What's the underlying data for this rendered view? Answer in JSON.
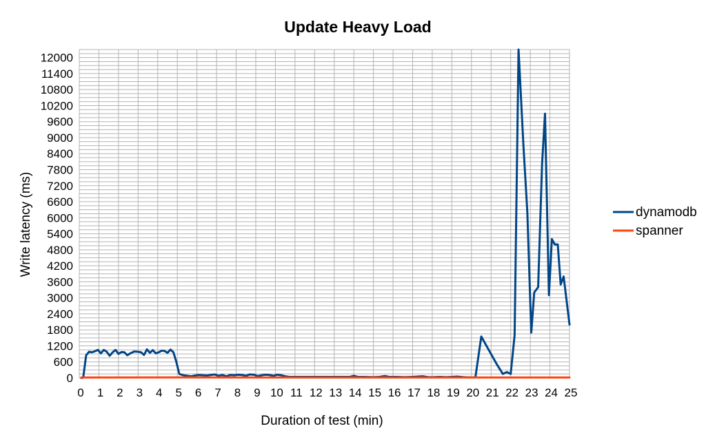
{
  "chart_data": {
    "type": "line",
    "title": "Update Heavy Load",
    "xlabel": "Duration of test (min)",
    "ylabel": "Write latency (ms)",
    "xlim": [
      0,
      25
    ],
    "ylim": [
      0,
      12300
    ],
    "x_ticks": [
      "0",
      "1",
      "2",
      "3",
      "4",
      "5",
      "6",
      "7",
      "8",
      "9",
      "10",
      "11",
      "12",
      "13",
      "14",
      "15",
      "16",
      "17",
      "18",
      "19",
      "20",
      "21",
      "22",
      "23",
      "24",
      "25"
    ],
    "y_ticks": [
      "0",
      "600",
      "1200",
      "1800",
      "2400",
      "3000",
      "3600",
      "4200",
      "4800",
      "5400",
      "6000",
      "6600",
      "7200",
      "7800",
      "8400",
      "9000",
      "9600",
      "10200",
      "10800",
      "11400",
      "12000"
    ],
    "minor_grid_step": 150,
    "grid": true,
    "legend_position": "right",
    "series": [
      {
        "name": "dynamodb",
        "color": "#004586",
        "points": [
          [
            0.1,
            0
          ],
          [
            0.2,
            10
          ],
          [
            0.35,
            850
          ],
          [
            0.5,
            980
          ],
          [
            0.65,
            960
          ],
          [
            0.8,
            1000
          ],
          [
            0.95,
            1050
          ],
          [
            1.1,
            920
          ],
          [
            1.25,
            1050
          ],
          [
            1.4,
            980
          ],
          [
            1.55,
            830
          ],
          [
            1.7,
            960
          ],
          [
            1.85,
            1050
          ],
          [
            2.0,
            900
          ],
          [
            2.15,
            970
          ],
          [
            2.3,
            960
          ],
          [
            2.45,
            850
          ],
          [
            2.6,
            920
          ],
          [
            2.8,
            990
          ],
          [
            3.0,
            980
          ],
          [
            3.15,
            960
          ],
          [
            3.3,
            860
          ],
          [
            3.45,
            1070
          ],
          [
            3.6,
            940
          ],
          [
            3.75,
            1040
          ],
          [
            3.9,
            920
          ],
          [
            4.05,
            960
          ],
          [
            4.2,
            1020
          ],
          [
            4.35,
            1010
          ],
          [
            4.5,
            940
          ],
          [
            4.65,
            1060
          ],
          [
            4.8,
            960
          ],
          [
            4.95,
            600
          ],
          [
            5.1,
            150
          ],
          [
            5.3,
            100
          ],
          [
            5.5,
            80
          ],
          [
            5.7,
            60
          ],
          [
            5.9,
            90
          ],
          [
            6.1,
            110
          ],
          [
            6.3,
            100
          ],
          [
            6.5,
            90
          ],
          [
            6.7,
            110
          ],
          [
            6.9,
            130
          ],
          [
            7.1,
            80
          ],
          [
            7.3,
            110
          ],
          [
            7.5,
            60
          ],
          [
            7.7,
            110
          ],
          [
            7.9,
            100
          ],
          [
            8.1,
            120
          ],
          [
            8.3,
            110
          ],
          [
            8.5,
            80
          ],
          [
            8.7,
            130
          ],
          [
            8.9,
            120
          ],
          [
            9.1,
            70
          ],
          [
            9.3,
            100
          ],
          [
            9.5,
            120
          ],
          [
            9.7,
            110
          ],
          [
            9.9,
            80
          ],
          [
            10.1,
            120
          ],
          [
            10.3,
            100
          ],
          [
            10.5,
            60
          ],
          [
            10.7,
            40
          ],
          [
            11.0,
            40
          ],
          [
            11.5,
            40
          ],
          [
            12.0,
            40
          ],
          [
            12.5,
            40
          ],
          [
            13.0,
            40
          ],
          [
            13.5,
            40
          ],
          [
            13.8,
            40
          ],
          [
            14.0,
            80
          ],
          [
            14.2,
            40
          ],
          [
            14.5,
            40
          ],
          [
            15.0,
            30
          ],
          [
            15.3,
            40
          ],
          [
            15.6,
            70
          ],
          [
            15.8,
            40
          ],
          [
            16.2,
            40
          ],
          [
            16.6,
            30
          ],
          [
            17.0,
            40
          ],
          [
            17.5,
            60
          ],
          [
            17.8,
            30
          ],
          [
            18.1,
            30
          ],
          [
            18.4,
            40
          ],
          [
            18.7,
            30
          ],
          [
            19.0,
            40
          ],
          [
            19.3,
            50
          ],
          [
            19.6,
            30
          ],
          [
            19.9,
            20
          ],
          [
            20.2,
            20
          ],
          [
            20.5,
            1550
          ],
          [
            21.3,
            500
          ],
          [
            21.6,
            150
          ],
          [
            21.8,
            220
          ],
          [
            22.0,
            150
          ],
          [
            22.2,
            1600
          ],
          [
            22.4,
            12300
          ],
          [
            22.65,
            8700
          ],
          [
            22.85,
            6200
          ],
          [
            23.05,
            1700
          ],
          [
            23.2,
            3200
          ],
          [
            23.4,
            3400
          ],
          [
            23.6,
            8000
          ],
          [
            23.75,
            9900
          ],
          [
            23.95,
            3100
          ],
          [
            24.1,
            5200
          ],
          [
            24.25,
            5000
          ],
          [
            24.4,
            5000
          ],
          [
            24.55,
            3500
          ],
          [
            24.7,
            3800
          ],
          [
            25.0,
            2000
          ]
        ]
      },
      {
        "name": "spanner",
        "color": "#ff420e",
        "points": [
          [
            0.1,
            15
          ],
          [
            5.0,
            20
          ],
          [
            10.0,
            15
          ],
          [
            15.0,
            15
          ],
          [
            20.0,
            15
          ],
          [
            25.0,
            15
          ]
        ]
      }
    ]
  }
}
